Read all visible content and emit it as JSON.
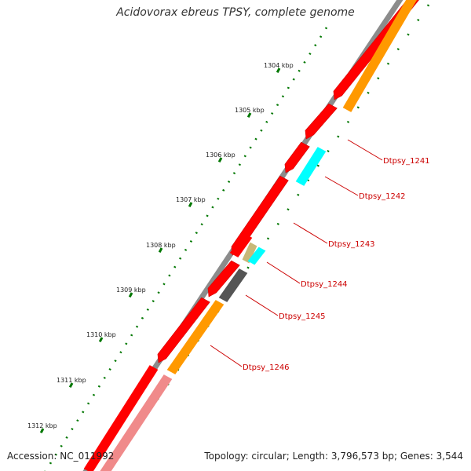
{
  "title": "Acidovorax ebreus TPSY, complete genome",
  "footer": {
    "accession": "Accession: NC_011992",
    "summary": "Topology: circular; Length: 3,796,573 bp; Genes: 3,544"
  },
  "scale_ticks": [
    "1304 kbp",
    "1305 kbp",
    "1306 kbp",
    "1307 kbp",
    "1308 kbp",
    "1309 kbp",
    "1310 kbp",
    "1311 kbp",
    "1312 kbp"
  ],
  "genes": [
    "Dtpsy_1241",
    "Dtpsy_1242",
    "Dtpsy_1243",
    "Dtpsy_1244",
    "Dtpsy_1245",
    "Dtpsy_1246"
  ],
  "colors": {
    "backbone": "#8c8c8c",
    "cds": "#ff0000",
    "cds_faded": "#f08a8a",
    "orange": "#ff9900",
    "cyan": "#00ffff",
    "tan": "#c8b878",
    "gray_feature": "#555555",
    "tick_green": "#007700",
    "label_red": "#cc0000"
  }
}
